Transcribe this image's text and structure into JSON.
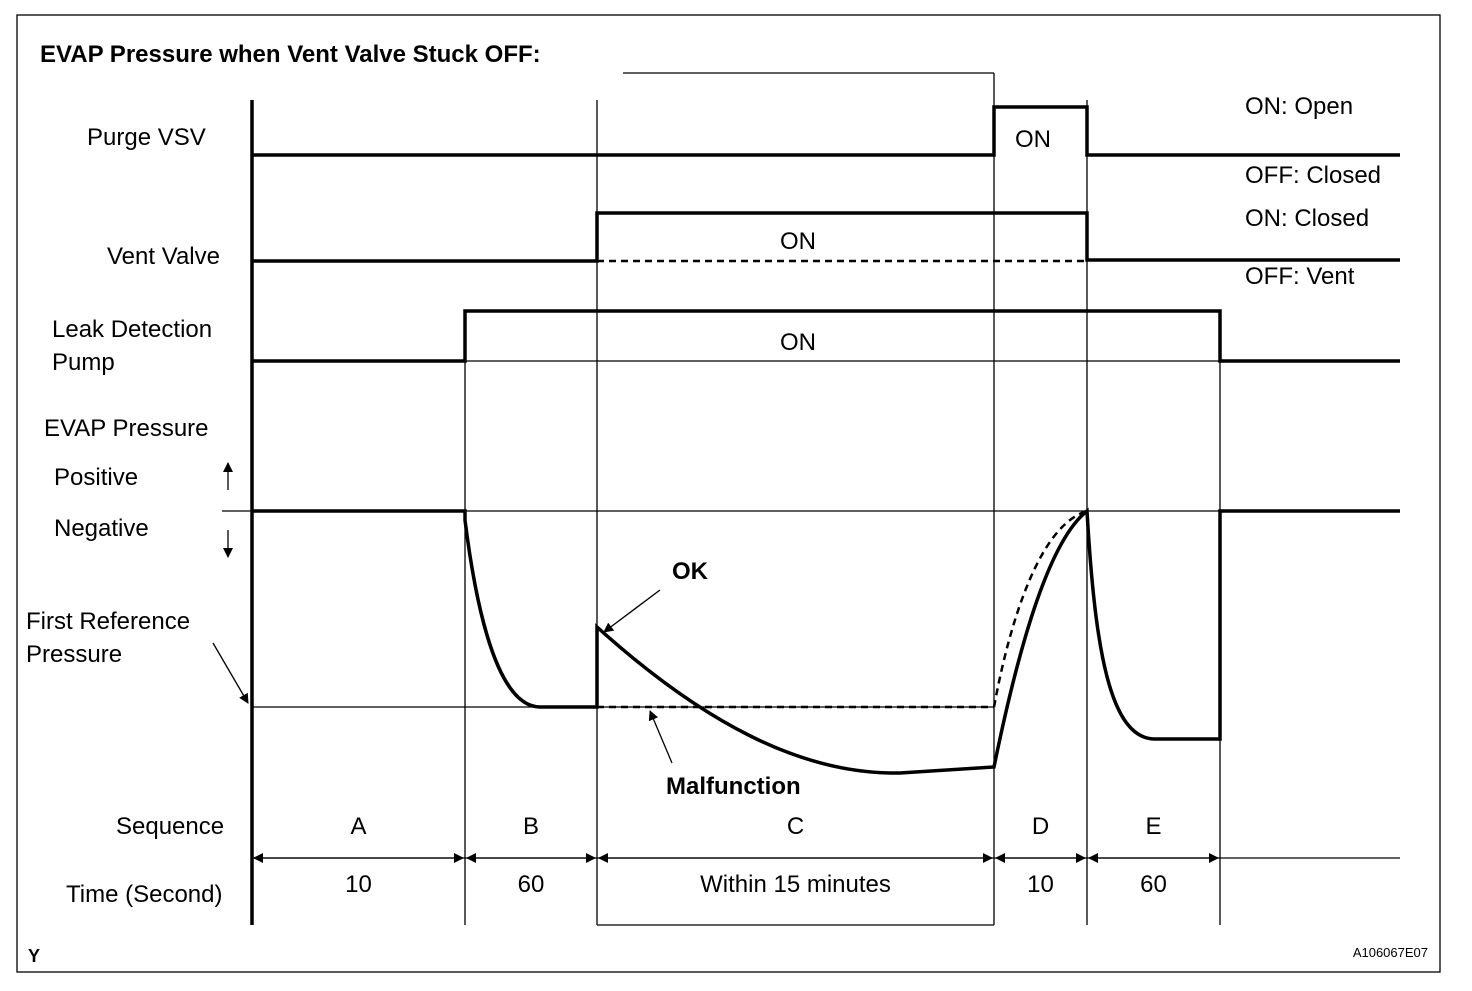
{
  "title": "EVAP Pressure when Vent Valve Stuck OFF:",
  "purge_vsv": {
    "label": "Purge VSV",
    "state": "ON",
    "on_legend": "ON: Open",
    "off_legend": "OFF: Closed"
  },
  "vent_valve": {
    "label": "Vent Valve",
    "state": "ON",
    "on_legend": "ON: Closed",
    "off_legend": "OFF: Vent"
  },
  "leak_pump": {
    "label": [
      "Leak Detection",
      "Pump"
    ],
    "state": "ON"
  },
  "evap": {
    "label": "EVAP Pressure",
    "positive": "Positive",
    "negative": "Negative",
    "reference": [
      "First Reference",
      "Pressure"
    ],
    "ok": "OK",
    "malfunction": "Malfunction"
  },
  "sequence": {
    "label": "Sequence",
    "items": [
      "A",
      "B",
      "C",
      "D",
      "E"
    ]
  },
  "time": {
    "label": "Time (Second)",
    "items": [
      "10",
      "60",
      "Within 15 minutes",
      "10",
      "60"
    ]
  },
  "footer": {
    "corner": "Y",
    "code": "A106067E07"
  }
}
